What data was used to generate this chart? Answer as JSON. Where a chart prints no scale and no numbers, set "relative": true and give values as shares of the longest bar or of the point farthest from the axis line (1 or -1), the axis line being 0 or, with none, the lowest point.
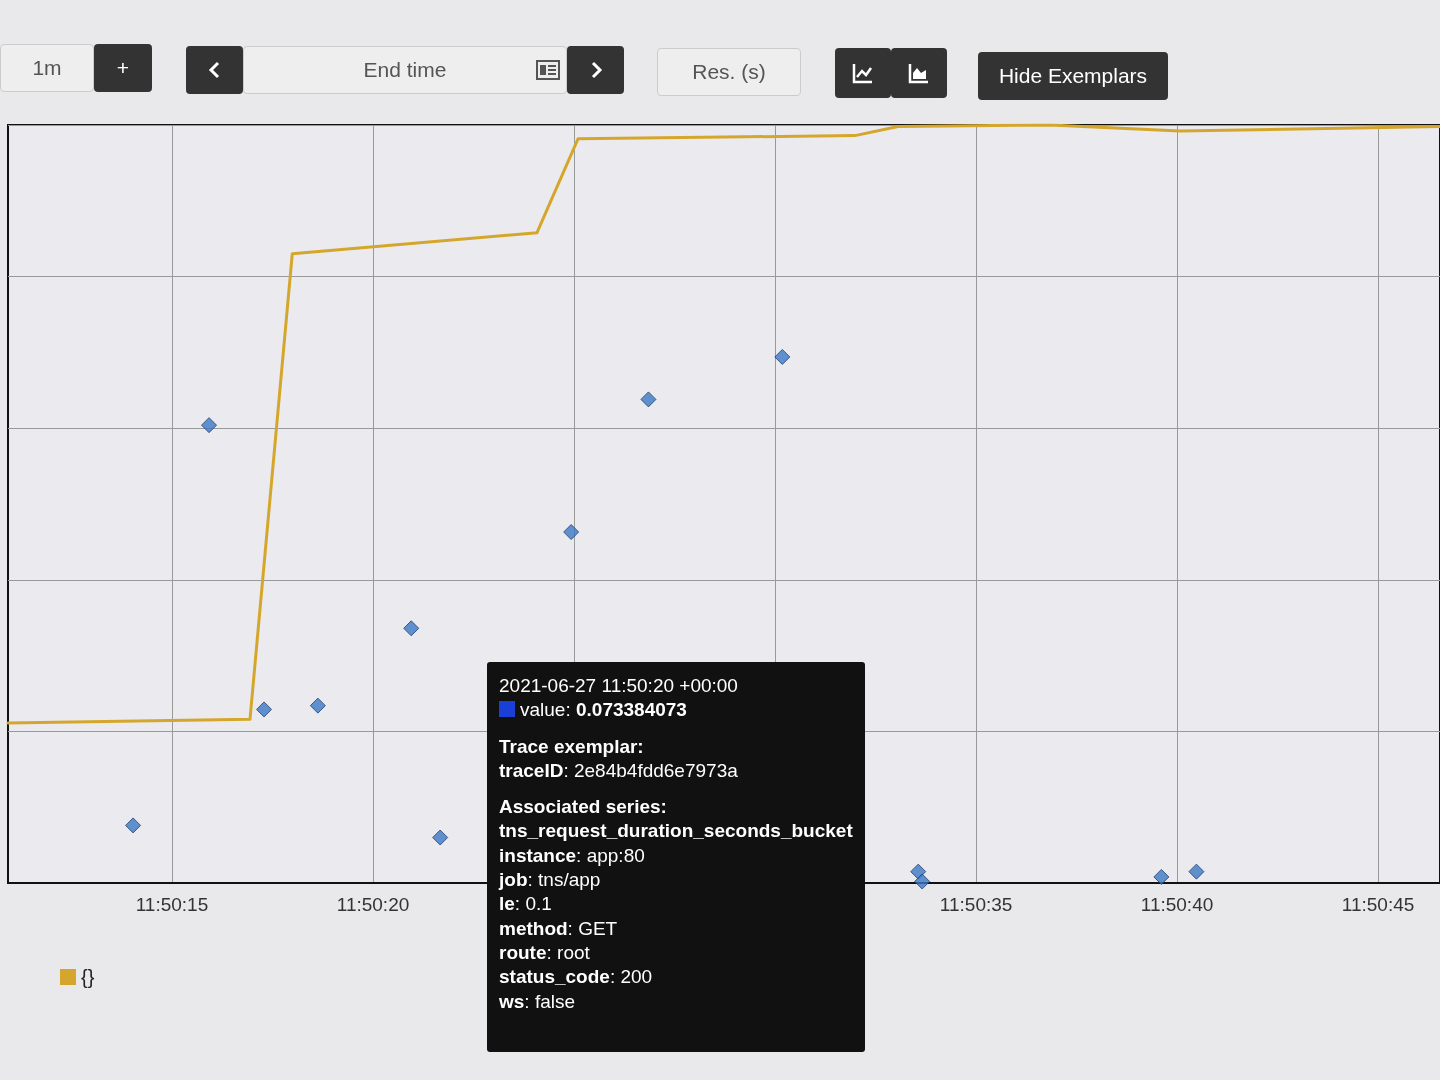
{
  "chart_data": {
    "type": "line",
    "relative": true,
    "legend": "bottom left",
    "grid": true,
    "xlim": [
      11.836367,
      11.846261
    ],
    "xticks": [
      {
        "value": 11.8375,
        "label": "11:50:15"
      },
      {
        "value": 11.838889,
        "label": "11:50:20"
      },
      {
        "value": 11.840278,
        "label": null
      },
      {
        "value": 11.841667,
        "label": null
      },
      {
        "value": 11.843056,
        "label": "11:50:35"
      },
      {
        "value": 11.844444,
        "label": "11:50:40"
      },
      {
        "value": 11.845833,
        "label": "11:50:45"
      }
    ],
    "series": [
      {
        "name": "{}",
        "marker": "none",
        "color": "#d4a72c",
        "x": [
          11.836367,
          11.838039,
          11.838331,
          11.840022,
          11.840306,
          11.842219,
          11.842517,
          11.843567,
          11.844464,
          11.846261
        ],
        "values": [
          0.211,
          0.216,
          0.83,
          0.858,
          0.982,
          0.986,
          0.998,
          1,
          0.992,
          0.998
        ]
      },
      {
        "type": "scatter",
        "marker": "diamond",
        "color": "#3d78c4",
        "x": [
          11.837231,
          11.837756,
          11.838136,
          11.838508,
          11.839153,
          11.839353,
          11.840258,
          11.840792,
          11.841717,
          11.842656,
          11.842683,
          11.844336,
          11.844578
        ],
        "values": [
          0.076,
          0.604,
          0.229,
          0.234,
          0.336,
          0.06,
          0.463,
          0.638,
          0.694,
          0.015,
          0.002,
          0.008,
          0.015
        ]
      }
    ],
    "annotations": [
      "1m",
      "+",
      "End time",
      "Res. (s)",
      "Hide Exemplars",
      "2021-06-27 11:50:20 +00:00",
      "value: 0.073384073",
      "Trace exemplar:",
      "traceID: 2e84b4fdd6e7973a",
      "Associated series:",
      "tns_request_duration_seconds_bucket",
      "instance: app:80",
      "job: tns/app",
      "le: 0.1",
      "method: GET",
      "route: root",
      "status_code: 200",
      "ws: false"
    ]
  }
}
